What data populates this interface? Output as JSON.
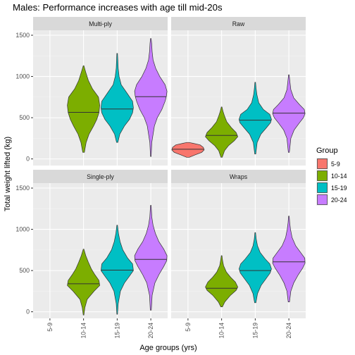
{
  "chart_data": {
    "type": "violin",
    "title": "Males: Performance increases with age till mid-20s",
    "xlabel": "Age groups (yrs)",
    "ylabel": "Total weight lifted (kg)",
    "categories": [
      "5-9",
      "10-14",
      "15-19",
      "20-24"
    ],
    "ylim": [
      -80,
      1560
    ],
    "yticks": [
      0,
      500,
      1000,
      1500
    ],
    "grid": true,
    "legend": {
      "title": "Group",
      "position": "right",
      "entries": [
        {
          "label": "5-9",
          "color": "#F8766D"
        },
        {
          "label": "10-14",
          "color": "#7CAE00"
        },
        {
          "label": "15-19",
          "color": "#00BFC4"
        },
        {
          "label": "20-24",
          "color": "#C77CFF"
        }
      ]
    },
    "panels": [
      {
        "name": "Multi-ply",
        "violins": [
          {
            "group": "10-14",
            "median": 565,
            "profile": [
              [
                80,
                0.05
              ],
              [
                200,
                0.16
              ],
              [
                300,
                0.34
              ],
              [
                400,
                0.62
              ],
              [
                480,
                0.82
              ],
              [
                560,
                0.95
              ],
              [
                650,
                1.0
              ],
              [
                750,
                0.92
              ],
              [
                850,
                0.55
              ],
              [
                950,
                0.3
              ],
              [
                1050,
                0.14
              ],
              [
                1130,
                0.02
              ]
            ]
          },
          {
            "group": "15-19",
            "median": 605,
            "profile": [
              [
                200,
                0.04
              ],
              [
                300,
                0.16
              ],
              [
                400,
                0.45
              ],
              [
                480,
                0.76
              ],
              [
                560,
                0.95
              ],
              [
                620,
                1.0
              ],
              [
                700,
                0.95
              ],
              [
                800,
                0.6
              ],
              [
                900,
                0.25
              ],
              [
                1000,
                0.12
              ],
              [
                1100,
                0.06
              ],
              [
                1200,
                0.04
              ],
              [
                1280,
                0.02
              ]
            ]
          },
          {
            "group": "20-24",
            "median": 755,
            "profile": [
              [
                30,
                0.02
              ],
              [
                200,
                0.06
              ],
              [
                400,
                0.22
              ],
              [
                500,
                0.4
              ],
              [
                600,
                0.68
              ],
              [
                700,
                0.88
              ],
              [
                760,
                0.96
              ],
              [
                820,
                1.0
              ],
              [
                900,
                0.88
              ],
              [
                1000,
                0.55
              ],
              [
                1100,
                0.3
              ],
              [
                1200,
                0.14
              ],
              [
                1300,
                0.08
              ],
              [
                1400,
                0.05
              ],
              [
                1460,
                0.02
              ]
            ]
          }
        ]
      },
      {
        "name": "Raw",
        "violins": [
          {
            "group": "5-9",
            "median": 118,
            "profile": [
              [
                20,
                0.08
              ],
              [
                50,
                0.45
              ],
              [
                80,
                0.85
              ],
              [
                110,
                1.0
              ],
              [
                140,
                0.95
              ],
              [
                170,
                0.75
              ],
              [
                190,
                0.3
              ],
              [
                200,
                0.05
              ]
            ]
          },
          {
            "group": "10-14",
            "median": 285,
            "profile": [
              [
                20,
                0.04
              ],
              [
                100,
                0.18
              ],
              [
                160,
                0.42
              ],
              [
                220,
                0.78
              ],
              [
                270,
                1.0
              ],
              [
                320,
                0.9
              ],
              [
                380,
                0.6
              ],
              [
                450,
                0.32
              ],
              [
                520,
                0.18
              ],
              [
                580,
                0.08
              ],
              [
                630,
                0.02
              ]
            ]
          },
          {
            "group": "15-19",
            "median": 470,
            "profile": [
              [
                60,
                0.03
              ],
              [
                200,
                0.12
              ],
              [
                300,
                0.35
              ],
              [
                380,
                0.7
              ],
              [
                440,
                0.95
              ],
              [
                480,
                1.0
              ],
              [
                540,
                0.9
              ],
              [
                600,
                0.5
              ],
              [
                680,
                0.22
              ],
              [
                780,
                0.1
              ],
              [
                860,
                0.05
              ],
              [
                930,
                0.02
              ]
            ]
          },
          {
            "group": "20-24",
            "median": 555,
            "profile": [
              [
                80,
                0.03
              ],
              [
                250,
                0.12
              ],
              [
                350,
                0.32
              ],
              [
                430,
                0.62
              ],
              [
                500,
                0.9
              ],
              [
                550,
                1.0
              ],
              [
                600,
                0.95
              ],
              [
                660,
                0.65
              ],
              [
                740,
                0.3
              ],
              [
                840,
                0.12
              ],
              [
                940,
                0.06
              ],
              [
                1020,
                0.02
              ]
            ]
          }
        ]
      },
      {
        "name": "Single-ply",
        "violins": [
          {
            "group": "10-14",
            "median": 340,
            "profile": [
              [
                -40,
                0.02
              ],
              [
                50,
                0.08
              ],
              [
                150,
                0.22
              ],
              [
                250,
                0.65
              ],
              [
                320,
                1.0
              ],
              [
                380,
                0.95
              ],
              [
                450,
                0.7
              ],
              [
                520,
                0.48
              ],
              [
                600,
                0.3
              ],
              [
                680,
                0.14
              ],
              [
                760,
                0.02
              ]
            ]
          },
          {
            "group": "15-19",
            "median": 505,
            "profile": [
              [
                -30,
                0.02
              ],
              [
                100,
                0.06
              ],
              [
                250,
                0.2
              ],
              [
                350,
                0.45
              ],
              [
                430,
                0.75
              ],
              [
                500,
                1.0
              ],
              [
                580,
                0.95
              ],
              [
                650,
                0.65
              ],
              [
                750,
                0.35
              ],
              [
                850,
                0.18
              ],
              [
                950,
                0.08
              ],
              [
                1050,
                0.02
              ]
            ]
          },
          {
            "group": "20-24",
            "median": 635,
            "profile": [
              [
                20,
                0.03
              ],
              [
                200,
                0.08
              ],
              [
                350,
                0.25
              ],
              [
                450,
                0.5
              ],
              [
                550,
                0.8
              ],
              [
                620,
                0.98
              ],
              [
                680,
                1.0
              ],
              [
                760,
                0.8
              ],
              [
                850,
                0.5
              ],
              [
                950,
                0.28
              ],
              [
                1050,
                0.14
              ],
              [
                1150,
                0.06
              ],
              [
                1290,
                0.02
              ]
            ]
          }
        ]
      },
      {
        "name": "Wraps",
        "violins": [
          {
            "group": "10-14",
            "median": 285,
            "profile": [
              [
                60,
                0.05
              ],
              [
                120,
                0.2
              ],
              [
                200,
                0.55
              ],
              [
                260,
                0.9
              ],
              [
                300,
                1.0
              ],
              [
                360,
                0.85
              ],
              [
                420,
                0.55
              ],
              [
                480,
                0.3
              ],
              [
                560,
                0.12
              ],
              [
                620,
                0.06
              ],
              [
                680,
                0.02
              ]
            ]
          },
          {
            "group": "15-19",
            "median": 500,
            "profile": [
              [
                110,
                0.04
              ],
              [
                220,
                0.14
              ],
              [
                320,
                0.36
              ],
              [
                400,
                0.66
              ],
              [
                470,
                0.92
              ],
              [
                520,
                1.0
              ],
              [
                580,
                0.9
              ],
              [
                640,
                0.62
              ],
              [
                720,
                0.3
              ],
              [
                800,
                0.14
              ],
              [
                880,
                0.06
              ],
              [
                960,
                0.02
              ]
            ]
          },
          {
            "group": "20-24",
            "median": 605,
            "profile": [
              [
                120,
                0.04
              ],
              [
                250,
                0.12
              ],
              [
                350,
                0.3
              ],
              [
                450,
                0.58
              ],
              [
                530,
                0.85
              ],
              [
                590,
                1.0
              ],
              [
                650,
                0.98
              ],
              [
                720,
                0.72
              ],
              [
                800,
                0.42
              ],
              [
                900,
                0.2
              ],
              [
                1000,
                0.1
              ],
              [
                1080,
                0.05
              ],
              [
                1160,
                0.02
              ]
            ]
          }
        ]
      }
    ]
  }
}
